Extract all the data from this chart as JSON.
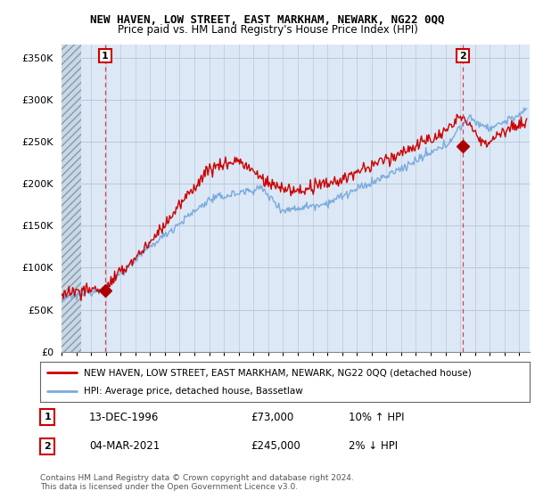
{
  "title": "NEW HAVEN, LOW STREET, EAST MARKHAM, NEWARK, NG22 0QQ",
  "subtitle": "Price paid vs. HM Land Registry's House Price Index (HPI)",
  "ylabel_ticks": [
    "£0",
    "£50K",
    "£100K",
    "£150K",
    "£200K",
    "£250K",
    "£300K",
    "£350K"
  ],
  "ytick_vals": [
    0,
    50000,
    100000,
    150000,
    200000,
    250000,
    300000,
    350000
  ],
  "ylim": [
    0,
    365000
  ],
  "xlim_start": 1994.0,
  "xlim_end": 2025.7,
  "point1_x": 1996.96,
  "point1_y": 73000,
  "point1_label": "1",
  "point2_x": 2021.17,
  "point2_y": 245000,
  "point2_label": "2",
  "legend_line1": "NEW HAVEN, LOW STREET, EAST MARKHAM, NEWARK, NG22 0QQ (detached house)",
  "legend_line2": "HPI: Average price, detached house, Bassetlaw",
  "annotation1_num": "1",
  "annotation1_date": "13-DEC-1996",
  "annotation1_price": "£73,000",
  "annotation1_hpi": "10% ↑ HPI",
  "annotation2_num": "2",
  "annotation2_date": "04-MAR-2021",
  "annotation2_price": "£245,000",
  "annotation2_hpi": "2% ↓ HPI",
  "copyright": "Contains HM Land Registry data © Crown copyright and database right 2024.\nThis data is licensed under the Open Government Licence v3.0.",
  "line_color_red": "#cc0000",
  "line_color_blue": "#7aaadd",
  "grid_color": "#b8c8dc",
  "bg_color": "#dce8f5",
  "hatch_color": "#c0ccd8",
  "vline_color": "#dd4444",
  "point_marker_color": "#aa0000"
}
